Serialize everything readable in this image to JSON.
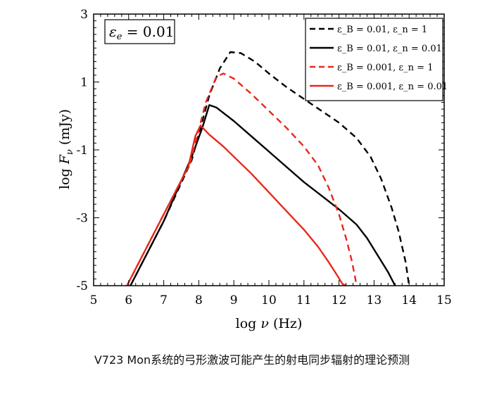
{
  "caption": "V723 Mon系统的弓形激波可能产生的射电同步辐射的理论预测",
  "chart_data": {
    "type": "line",
    "xlabel": "log ν (Hz)",
    "ylabel": "log F_ν (mJy)",
    "xlim": [
      5,
      15
    ],
    "ylim": [
      -5,
      3
    ],
    "xticks": [
      "5",
      "6",
      "7",
      "8",
      "9",
      "10",
      "11",
      "12",
      "13",
      "14",
      "15"
    ],
    "yticks": [
      "3",
      "1",
      "-1",
      "-3",
      "-5"
    ],
    "annotation": "ε_e = 0.01",
    "legend_position": "top-right",
    "series": [
      {
        "name": "ε_B = 0.01, ε_n = 1",
        "color": "#000000",
        "dash": "dashed",
        "x": [
          6.05,
          7.0,
          7.8,
          8.3,
          8.6,
          8.9,
          9.2,
          9.6,
          10.0,
          10.5,
          11.0,
          11.5,
          12.0,
          12.5,
          12.9,
          13.2,
          13.5,
          13.7,
          13.9,
          14.0
        ],
        "y": [
          -5.0,
          -3.1,
          -1.3,
          0.6,
          1.4,
          1.88,
          1.85,
          1.6,
          1.25,
          0.85,
          0.5,
          0.15,
          -0.2,
          -0.65,
          -1.2,
          -1.85,
          -2.7,
          -3.4,
          -4.3,
          -5.0
        ]
      },
      {
        "name": "ε_B = 0.01, ε_n = 0.01",
        "color": "#000000",
        "dash": "solid",
        "x": [
          6.05,
          7.0,
          7.8,
          8.1,
          8.3,
          8.5,
          9.0,
          9.5,
          10.0,
          10.5,
          11.0,
          11.5,
          12.0,
          12.5,
          12.8,
          13.1,
          13.4,
          13.6
        ],
        "y": [
          -5.0,
          -3.1,
          -1.2,
          -0.35,
          0.32,
          0.25,
          -0.15,
          -0.6,
          -1.05,
          -1.5,
          -1.95,
          -2.35,
          -2.75,
          -3.2,
          -3.6,
          -4.1,
          -4.6,
          -5.0
        ]
      },
      {
        "name": "ε_B = 0.001, ε_n = 1",
        "color": "#e8291c",
        "dash": "dashed",
        "x": [
          5.95,
          6.9,
          7.75,
          8.2,
          8.5,
          8.7,
          9.0,
          9.5,
          10.0,
          10.5,
          11.0,
          11.4,
          11.7,
          12.0,
          12.2,
          12.35,
          12.45,
          12.5
        ],
        "y": [
          -5.0,
          -3.1,
          -1.4,
          0.4,
          1.15,
          1.25,
          1.1,
          0.65,
          0.15,
          -0.35,
          -0.9,
          -1.45,
          -2.1,
          -2.9,
          -3.6,
          -4.2,
          -4.7,
          -5.0
        ]
      },
      {
        "name": "ε_B = 0.001, ε_n = 0.01",
        "color": "#e8291c",
        "dash": "solid",
        "x": [
          5.95,
          6.9,
          7.7,
          7.9,
          8.05,
          8.3,
          8.7,
          9.0,
          9.5,
          10.0,
          10.5,
          11.0,
          11.4,
          11.7,
          11.95,
          12.1,
          12.2
        ],
        "y": [
          -5.0,
          -3.1,
          -1.5,
          -0.6,
          -0.28,
          -0.55,
          -0.9,
          -1.2,
          -1.7,
          -2.25,
          -2.8,
          -3.35,
          -3.85,
          -4.3,
          -4.7,
          -4.95,
          -5.0
        ]
      }
    ]
  }
}
